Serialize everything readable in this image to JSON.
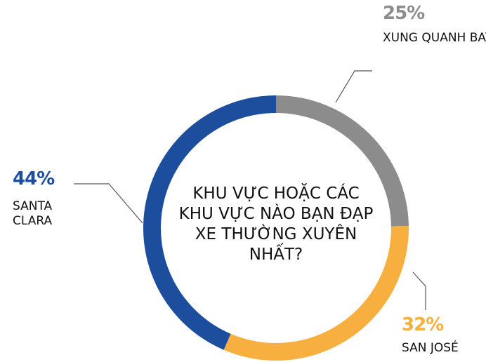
{
  "chart_data": {
    "type": "donut",
    "title": "KHU VỰC HOẶC CÁC KHU VỰC NÀO BẠN ĐẠP XE THƯỜNG XUYÊN NHẤT?",
    "categories": [
      "XUNG QUANH BAY",
      "SAN JOSÉ",
      "SANTA CLARA"
    ],
    "values": [
      25,
      32,
      44
    ],
    "value_labels": [
      "25%",
      "32%",
      "44%"
    ],
    "colors": [
      "#8c8c8c",
      "#f7b03f",
      "#1c4e9d"
    ]
  }
}
